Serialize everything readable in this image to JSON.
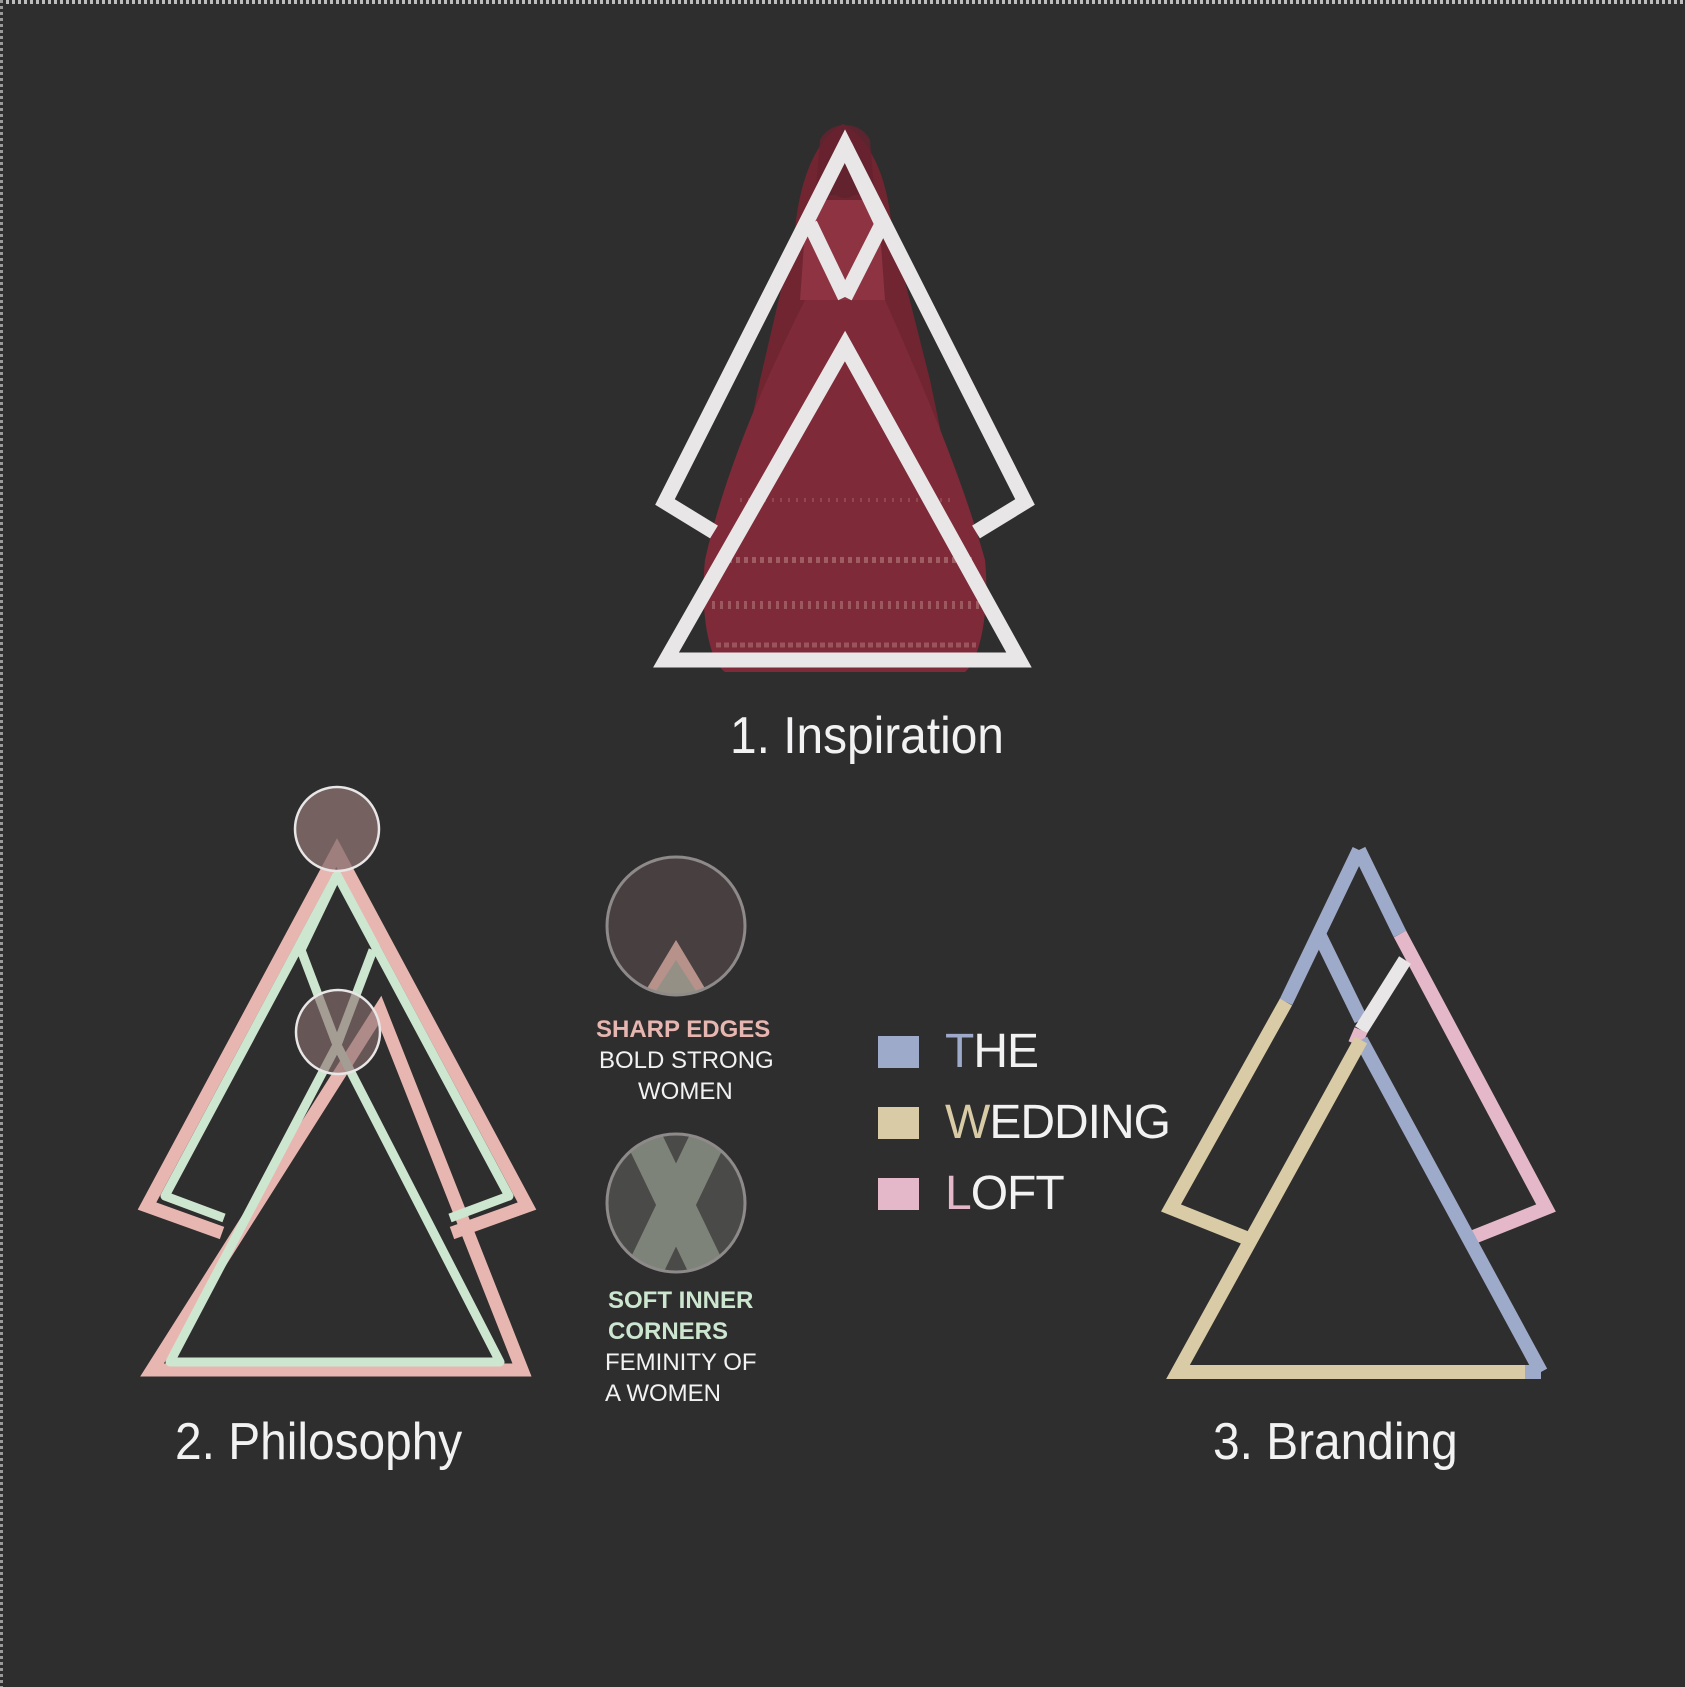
{
  "sections": [
    {
      "label": "1. Inspiration"
    },
    {
      "label": "2. Philosophy"
    },
    {
      "label": "3. Branding"
    }
  ],
  "notes": {
    "sharp": {
      "heading": "SHARP EDGES",
      "lines": [
        "BOLD STRONG",
        "WOMEN"
      ]
    },
    "soft": {
      "heading_lines": [
        "SOFT INNER",
        "CORNERS"
      ],
      "lines": [
        "FEMINITY OF",
        "A WOMEN"
      ]
    }
  },
  "legend": [
    {
      "initial": "T",
      "rest": "HE",
      "color": "#9eaac9"
    },
    {
      "initial": "W",
      "rest": "EDDING",
      "color": "#d8cba5"
    },
    {
      "initial": "L",
      "rest": "OFT",
      "color": "#e4b8c8"
    }
  ],
  "colors": {
    "background": "#2f2e2f",
    "outline": "#e8e6e6",
    "pink": "#e8b6b0",
    "mint": "#cde6cf",
    "blue": "#9eaac9",
    "sand": "#d8cba5",
    "rose": "#e4b8c8",
    "lehenga": "#8a2a3a"
  },
  "icons": {
    "inspiration": "bridal-lehenga-photo",
    "sharp": "sharp-apex-lens",
    "soft": "cross-lens"
  }
}
